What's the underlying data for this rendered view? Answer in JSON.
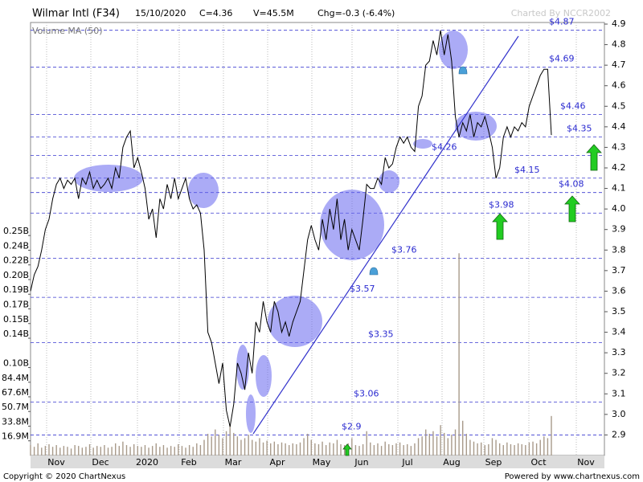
{
  "chart_data": {
    "type": "line",
    "title": "Wilmar Intl (F34)",
    "date": "15/10/2020",
    "close_label": "C=4.36",
    "volume_label": "V=45.5M",
    "change_label": "Chg=-0.3 (-6.4%)",
    "credit": "Charted By NCCR2002",
    "volume_ma_label": "Volume MA (50)",
    "footer_left": "Copyright © 2020 ChartNexus",
    "footer_right": "Powered by www.chartnexus.com",
    "xtick_labels": [
      "Nov",
      "Dec",
      "2020",
      "Feb",
      "Mar",
      "Apr",
      "May",
      "Jun",
      "Jul",
      "Aug",
      "Sep",
      "Oct",
      "Nov"
    ],
    "ylim": [
      2.8,
      4.9
    ],
    "yticks": [
      2.9,
      {
        "value": 3,
        "label": "3.0"
      },
      3.1,
      3.2,
      3.3,
      3.4,
      3.5,
      3.6,
      3.7,
      3.8,
      3.9,
      {
        "value": 4,
        "label": "4.0"
      },
      4.1,
      4.2,
      4.3,
      4.4,
      4.5,
      4.6,
      4.7,
      4.8,
      4.9
    ],
    "y2lim": [
      0,
      497
    ],
    "y2ticks": [
      {
        "value": 16.9,
        "label": "16.9M"
      },
      {
        "value": 33.8,
        "label": "33.8M"
      },
      {
        "value": 50.7,
        "label": "50.7M"
      },
      {
        "value": 67.6,
        "label": "67.6M"
      },
      {
        "value": 84.4,
        "label": "84.4M"
      },
      {
        "value": 101.3,
        "label": "0.10B"
      },
      {
        "value": 135.1,
        "label": "0.14B"
      },
      {
        "value": 152,
        "label": "0.15B"
      },
      {
        "value": 168.9,
        "label": "0.17B"
      },
      {
        "value": 185.8,
        "label": "0.19B"
      },
      {
        "value": 202.7,
        "label": "0.20B"
      },
      {
        "value": 219.6,
        "label": "0.22B"
      },
      {
        "value": 236.5,
        "label": "0.24B"
      },
      {
        "value": 253.4,
        "label": "0.25B"
      }
    ],
    "levels": [
      {
        "value": 4.87,
        "label": "$4.87"
      },
      {
        "value": 4.69,
        "label": "$4.69"
      },
      {
        "value": 4.46,
        "label": "$4.46"
      },
      {
        "value": 4.35,
        "label": "$4.35"
      },
      {
        "value": 4.26,
        "label": "$4.26"
      },
      {
        "value": 4.15,
        "label": "$4.15"
      },
      {
        "value": 4.08,
        "label": "$4.08"
      },
      {
        "value": 3.98,
        "label": "$3.98"
      },
      {
        "value": 3.76,
        "label": "$3.76"
      },
      {
        "value": 3.57,
        "label": "$3.57"
      },
      {
        "value": 3.35,
        "label": "$3.35"
      },
      {
        "value": 3.06,
        "label": "$3.06"
      },
      {
        "value": 2.9,
        "label": "$2.9"
      }
    ],
    "series": [
      {
        "color": "#000000",
        "values": [
          3.6,
          3.68,
          3.72,
          3.8,
          3.9,
          3.95,
          4.05,
          4.12,
          4.15,
          4.1,
          4.14,
          4.12,
          4.15,
          4.05,
          4.15,
          4.12,
          4.18,
          4.1,
          4.14,
          4.1,
          4.12,
          4.15,
          4.1,
          4.2,
          4.15,
          4.3,
          4.35,
          4.38,
          4.2,
          4.25,
          4.18,
          4.1,
          3.95,
          4.0,
          3.86,
          4.05,
          4.0,
          4.12,
          4.05,
          4.15,
          4.05,
          4.1,
          4.15,
          4.05,
          4.0,
          4.02,
          3.98,
          3.8,
          3.4,
          3.35,
          3.25,
          3.15,
          3.25,
          3.02,
          2.94,
          3.05,
          3.25,
          3.2,
          3.12,
          3.3,
          3.2,
          3.45,
          3.4,
          3.55,
          3.45,
          3.4,
          3.55,
          3.5,
          3.4,
          3.45,
          3.38,
          3.45,
          3.5,
          3.55,
          3.7,
          3.85,
          3.92,
          3.85,
          3.8,
          3.95,
          3.85,
          4.0,
          3.9,
          4.05,
          3.85,
          3.95,
          3.8,
          3.9,
          3.85,
          3.8,
          3.95,
          4.12,
          4.1,
          4.1,
          4.15,
          4.12,
          4.25,
          4.2,
          4.22,
          4.3,
          4.35,
          4.32,
          4.35,
          4.3,
          4.28,
          4.5,
          4.55,
          4.7,
          4.72,
          4.82,
          4.75,
          4.87,
          4.75,
          4.85,
          4.72,
          4.45,
          4.35,
          4.42,
          4.38,
          4.46,
          4.35,
          4.42,
          4.4,
          4.45,
          4.38,
          4.3,
          4.15,
          4.2,
          4.35,
          4.4,
          4.35,
          4.4,
          4.38,
          4.42,
          4.4,
          4.5,
          4.55,
          4.6,
          4.65,
          4.68,
          4.68,
          4.36
        ]
      },
      {
        "axis": "y2",
        "color": "#a89a8a",
        "values": [
          12,
          10,
          14,
          9,
          11,
          13,
          10,
          12,
          9,
          11,
          10,
          8,
          12,
          11,
          9,
          10,
          13,
          9,
          11,
          10,
          12,
          9,
          10,
          14,
          11,
          16,
          12,
          10,
          13,
          11,
          10,
          12,
          9,
          11,
          14,
          10,
          12,
          9,
          11,
          10,
          13,
          11,
          9,
          12,
          10,
          14,
          12,
          18,
          25,
          22,
          30,
          24,
          20,
          28,
          35,
          26,
          22,
          18,
          20,
          24,
          18,
          16,
          20,
          15,
          17,
          14,
          16,
          13,
          15,
          14,
          12,
          14,
          13,
          15,
          20,
          25,
          18,
          14,
          13,
          16,
          12,
          15,
          14,
          18,
          13,
          12,
          14,
          20,
          12,
          11,
          13,
          28,
          15,
          12,
          14,
          11,
          16,
          13,
          12,
          14,
          15,
          12,
          13,
          11,
          14,
          20,
          22,
          30,
          25,
          28,
          22,
          35,
          26,
          20,
          24,
          30,
          233,
          40,
          25,
          18,
          16,
          14,
          15,
          12,
          13,
          20,
          18,
          14,
          12,
          15,
          13,
          12,
          14,
          13,
          12,
          15,
          16,
          14,
          18,
          22,
          20,
          45.5
        ]
      }
    ]
  }
}
